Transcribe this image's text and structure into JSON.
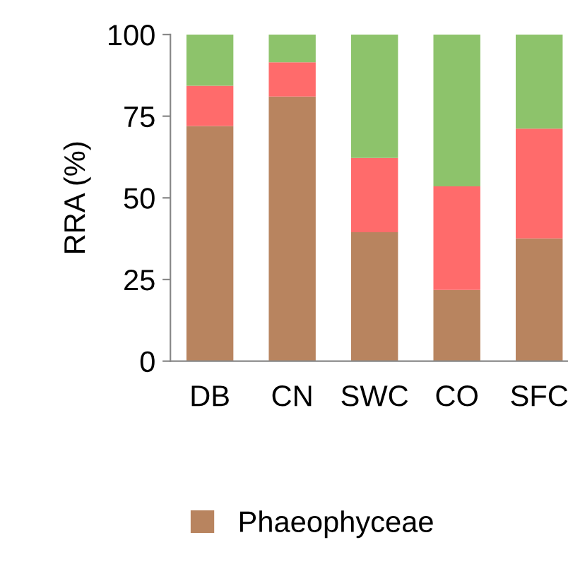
{
  "chart_data": {
    "type": "bar",
    "stacked": true,
    "ylabel": "RRA (%)",
    "categories": [
      "DB",
      "CN",
      "SWC",
      "CO",
      "SFC"
    ],
    "series": [
      {
        "name": "Phaeophyceae",
        "color": "#b8845f",
        "values": [
          72.0,
          81.0,
          39.5,
          21.8,
          37.6
        ]
      },
      {
        "color": "#ff6b6b",
        "values": [
          12.3,
          10.5,
          22.7,
          31.7,
          33.6
        ]
      },
      {
        "color": "#8dc36b",
        "values": [
          15.7,
          8.5,
          37.8,
          46.5,
          28.8
        ]
      }
    ],
    "ylim": [
      0,
      100
    ],
    "yticks": [
      0,
      25,
      50,
      75,
      100
    ],
    "grid": false,
    "legend": "bottom"
  }
}
